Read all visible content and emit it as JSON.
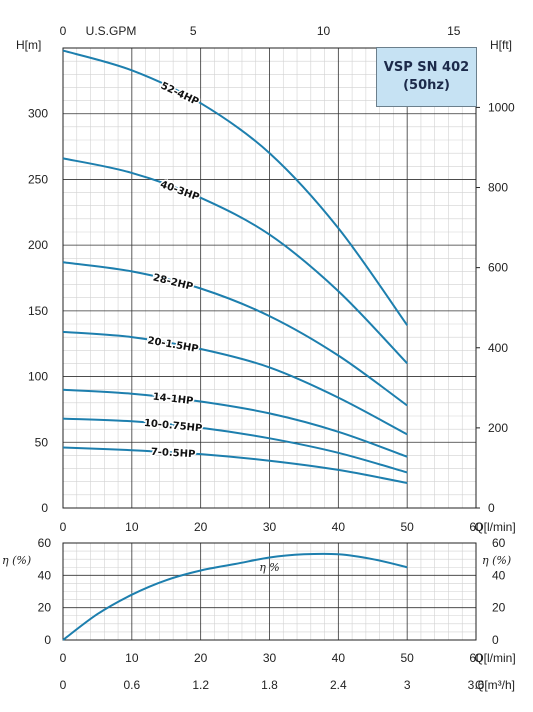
{
  "title": "VSP SN 402",
  "subtitle": "(50hz)",
  "chart_data": [
    {
      "type": "line",
      "name": "head",
      "xlabel": "Q[l/min]",
      "ylabel_left": "H[m]",
      "ylabel_right": "H[ft]",
      "top_axis_label": "U.S.GPM",
      "xlim": [
        0,
        60
      ],
      "ylim": [
        0,
        350
      ],
      "x_ticks": [
        "0",
        "10",
        "20",
        "30",
        "40",
        "50",
        "60"
      ],
      "y_ticks": [
        "0",
        "50",
        "100",
        "150",
        "200",
        "250",
        "300"
      ],
      "top_ticks": [
        "0",
        "5",
        "10",
        "15"
      ],
      "right_ticks": [
        "0",
        "200",
        "400",
        "600",
        "800",
        "1000"
      ],
      "grid": true,
      "series": [
        {
          "name": "52-4HP",
          "x": [
            0,
            10,
            20,
            30,
            40,
            50
          ],
          "y": [
            348,
            333,
            308,
            270,
            213,
            139
          ]
        },
        {
          "name": "40-3HP",
          "x": [
            0,
            10,
            20,
            30,
            40,
            50
          ],
          "y": [
            266,
            255,
            236,
            208,
            165,
            110
          ]
        },
        {
          "name": "28-2HP",
          "x": [
            0,
            10,
            20,
            30,
            40,
            50
          ],
          "y": [
            187,
            180,
            167,
            146,
            116,
            78
          ]
        },
        {
          "name": "20-1.5HP",
          "x": [
            0,
            10,
            20,
            30,
            40,
            50
          ],
          "y": [
            134,
            130,
            121,
            107,
            84,
            56
          ]
        },
        {
          "name": "14-1HP",
          "x": [
            0,
            10,
            20,
            30,
            40,
            50
          ],
          "y": [
            90,
            87,
            81,
            72,
            58,
            39
          ]
        },
        {
          "name": "10-0.75HP",
          "x": [
            0,
            10,
            20,
            30,
            40,
            50
          ],
          "y": [
            68,
            66,
            61,
            53,
            42,
            27
          ]
        },
        {
          "name": "7-0.5HP",
          "x": [
            0,
            10,
            20,
            30,
            40,
            50
          ],
          "y": [
            46,
            44,
            41,
            36,
            29,
            19
          ]
        }
      ]
    },
    {
      "type": "line",
      "name": "efficiency",
      "xlabel": "Q[l/min]",
      "xlabel2": "Q[m³/h]",
      "ylabel_left": "η (%)",
      "ylabel_right": "η (%)",
      "curve_label": "η %",
      "xlim": [
        0,
        60
      ],
      "ylim": [
        0,
        60
      ],
      "x_ticks": [
        "0",
        "10",
        "20",
        "30",
        "40",
        "50",
        "60"
      ],
      "x2_ticks": [
        "0",
        "0.6",
        "1.2",
        "1.8",
        "2.4",
        "3",
        "3.6"
      ],
      "y_ticks": [
        "0",
        "20",
        "40",
        "60"
      ],
      "grid": true,
      "series": [
        {
          "name": "η %",
          "x": [
            0,
            5,
            10,
            15,
            20,
            25,
            30,
            35,
            40,
            45,
            50
          ],
          "y": [
            0,
            16,
            28,
            37,
            43,
            47,
            51,
            53,
            53,
            50,
            45
          ]
        }
      ]
    }
  ]
}
